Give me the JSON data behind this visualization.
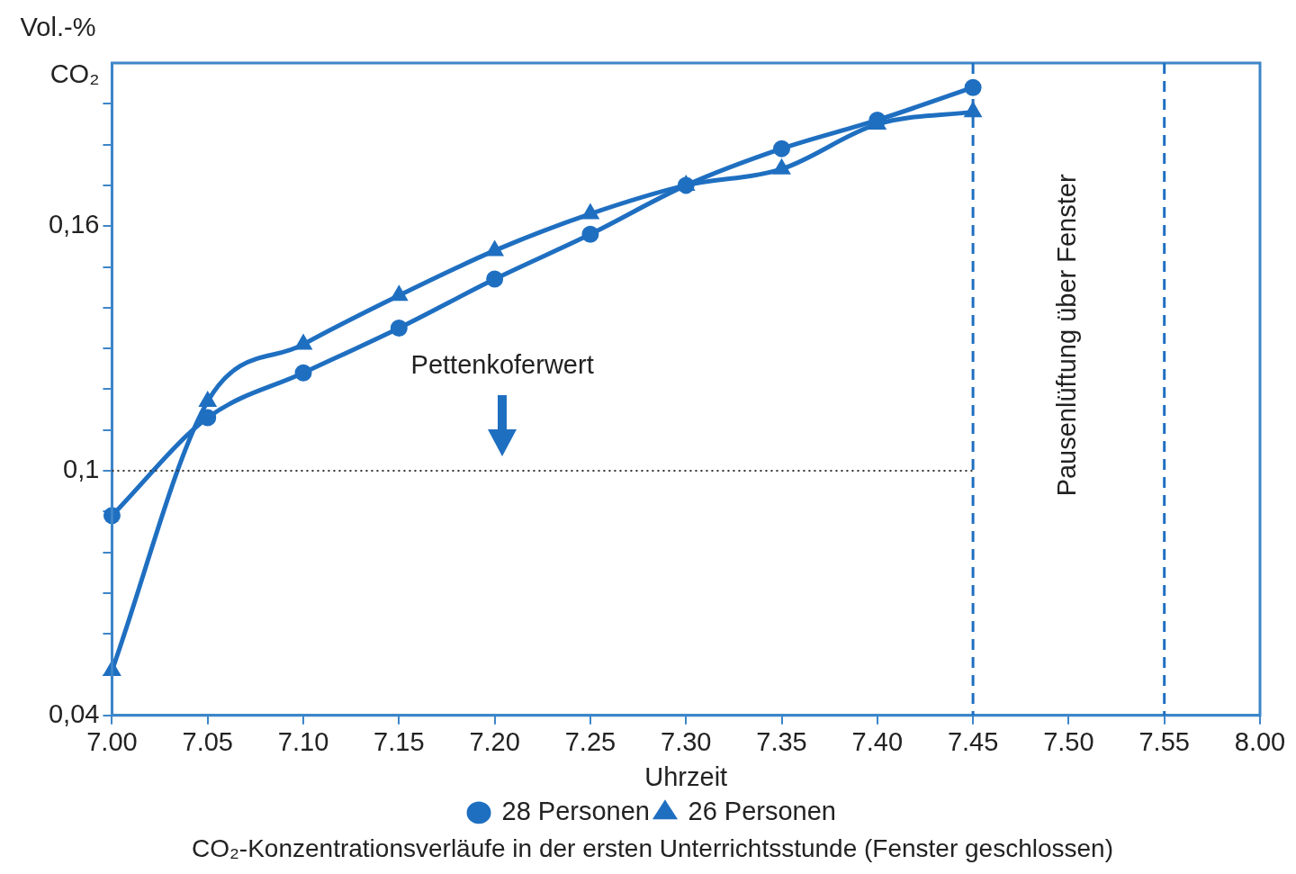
{
  "chart_data": {
    "type": "line",
    "title": "CO₂-Konzentrationsverläufe in der ersten Unterrichtsstunde (Fenster geschlossen)",
    "xlabel": "Uhrzeit",
    "ylabel": "Vol.-% CO₂",
    "categories": [
      "7.00",
      "7.05",
      "7.10",
      "7.15",
      "7.20",
      "7.25",
      "7.30",
      "7.35",
      "7.40",
      "7.45",
      "7.50",
      "7.55",
      "8.00"
    ],
    "series": [
      {
        "name": "28 Personen",
        "color": "#1f6fc1",
        "marker": "circle",
        "values": [
          0.089,
          0.113,
          0.124,
          0.135,
          0.147,
          0.158,
          0.17,
          0.179,
          0.186,
          0.194,
          null,
          null,
          null
        ]
      },
      {
        "name": "26 Personen",
        "color": "#1f6fc1",
        "marker": "triangle",
        "values": [
          0.051,
          0.117,
          0.131,
          0.143,
          0.154,
          0.163,
          0.17,
          0.174,
          0.185,
          0.188,
          null,
          null,
          null
        ]
      }
    ],
    "ylim": [
      0.04,
      0.2
    ],
    "yticks": [
      {
        "value": 0.04,
        "label": "0,04"
      },
      {
        "value": 0.05,
        "label": null
      },
      {
        "value": 0.06,
        "label": null
      },
      {
        "value": 0.07,
        "label": null
      },
      {
        "value": 0.08,
        "label": null
      },
      {
        "value": 0.09,
        "label": null
      },
      {
        "value": 0.1,
        "label": "0,1"
      },
      {
        "value": 0.11,
        "label": null
      },
      {
        "value": 0.12,
        "label": null
      },
      {
        "value": 0.13,
        "label": null
      },
      {
        "value": 0.14,
        "label": null
      },
      {
        "value": 0.15,
        "label": null
      },
      {
        "value": 0.16,
        "label": "0,16"
      },
      {
        "value": 0.17,
        "label": null
      },
      {
        "value": 0.18,
        "label": null
      },
      {
        "value": 0.19,
        "label": null
      }
    ],
    "ref_lines": [
      {
        "axis": "y",
        "value": 0.1,
        "line_style": "dotted",
        "color": "#333333"
      },
      {
        "axis": "x",
        "value": "7.45",
        "line_style": "dashed",
        "color": "#1f6fc1"
      },
      {
        "axis": "x",
        "value": "7.55",
        "line_style": "dashed",
        "color": "#1f6fc1"
      }
    ],
    "annotations": [
      "Pettenkoferwert",
      "Pausenlüftung über Fenster"
    ],
    "grid": false,
    "legend": "bottom",
    "line_style": "solid"
  }
}
